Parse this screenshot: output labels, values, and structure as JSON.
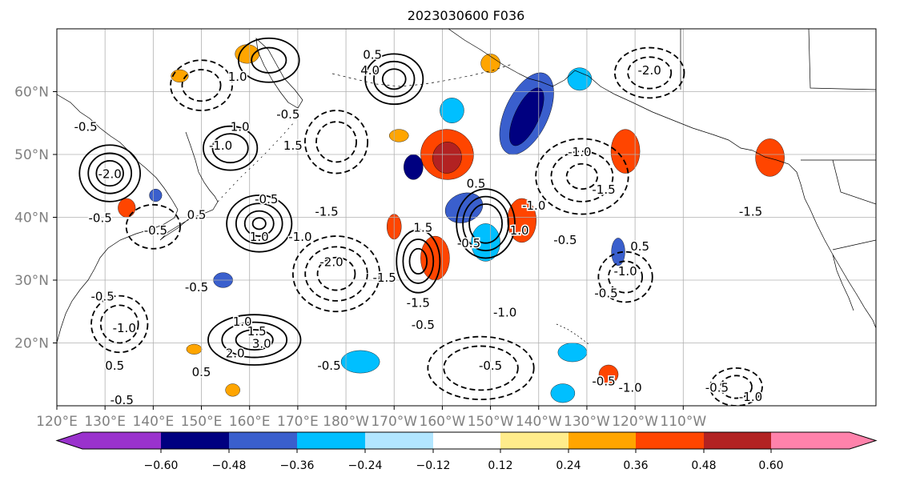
{
  "title": "2023030600 F036",
  "map": {
    "lon_range": [
      120,
      290
    ],
    "lat_range": [
      10,
      70
    ],
    "lon_ticks": [
      {
        "value": 120,
        "label": "120°E"
      },
      {
        "value": 130,
        "label": "130°E"
      },
      {
        "value": 140,
        "label": "140°E"
      },
      {
        "value": 150,
        "label": "150°E"
      },
      {
        "value": 160,
        "label": "160°E"
      },
      {
        "value": 170,
        "label": "170°E"
      },
      {
        "value": 180,
        "label": "180°W"
      },
      {
        "value": 190,
        "label": "170°W"
      },
      {
        "value": 200,
        "label": "160°W"
      },
      {
        "value": 210,
        "label": "150°W"
      },
      {
        "value": 220,
        "label": "140°W"
      },
      {
        "value": 230,
        "label": "130°W"
      },
      {
        "value": 240,
        "label": "120°W"
      },
      {
        "value": 250,
        "label": "110°W"
      }
    ],
    "lat_ticks": [
      {
        "value": 20,
        "label": "20°N"
      },
      {
        "value": 30,
        "label": "30°N"
      },
      {
        "value": 40,
        "label": "40°N"
      },
      {
        "value": 50,
        "label": "50°N"
      },
      {
        "value": 60,
        "label": "60°N"
      }
    ],
    "grid": true,
    "contour_labels": [
      {
        "text": "0.5",
        "lon": 185.5,
        "lat": 66.0
      },
      {
        "text": "1.0",
        "lon": 157.5,
        "lat": 62.5
      },
      {
        "text": "4.0",
        "lon": 185.0,
        "lat": 63.5
      },
      {
        "text": "-0.5",
        "lon": 126.0,
        "lat": 54.5
      },
      {
        "text": "1.0",
        "lon": 158.0,
        "lat": 54.5
      },
      {
        "text": "1.5",
        "lon": 169.0,
        "lat": 51.5
      },
      {
        "text": "-0.5",
        "lon": 168.0,
        "lat": 56.5
      },
      {
        "text": "-1.0",
        "lon": 154.0,
        "lat": 51.5
      },
      {
        "text": "-2.0",
        "lon": 131.0,
        "lat": 47.0
      },
      {
        "text": "0.5",
        "lon": 149.0,
        "lat": 40.5
      },
      {
        "text": "-0.5",
        "lon": 163.5,
        "lat": 43.0
      },
      {
        "text": "-1.5",
        "lon": 176.0,
        "lat": 41.0
      },
      {
        "text": "-1.0",
        "lon": 170.5,
        "lat": 37.0
      },
      {
        "text": "-2.0",
        "lon": 177.0,
        "lat": 33.0
      },
      {
        "text": "1.5",
        "lon": 196.0,
        "lat": 38.5
      },
      {
        "text": "-0.5",
        "lon": 205.5,
        "lat": 36.0
      },
      {
        "text": "-1.5",
        "lon": 195.0,
        "lat": 26.5
      },
      {
        "text": "-1.5",
        "lon": 188.0,
        "lat": 30.5
      },
      {
        "text": "-1.0",
        "lon": 213.0,
        "lat": 25.0
      },
      {
        "text": "1.0",
        "lon": 216.0,
        "lat": 38.0
      },
      {
        "text": "-1.0",
        "lon": 219.0,
        "lat": 42.0
      },
      {
        "text": "-1.5",
        "lon": 233.5,
        "lat": 44.5
      },
      {
        "text": "-1.0",
        "lon": 228.5,
        "lat": 50.5
      },
      {
        "text": "-0.5",
        "lon": 225.5,
        "lat": 36.5
      },
      {
        "text": "-0.5",
        "lon": 234.0,
        "lat": 28.0
      },
      {
        "text": "-1.0",
        "lon": 238.0,
        "lat": 31.5
      },
      {
        "text": "0.5",
        "lon": 241.0,
        "lat": 35.5
      },
      {
        "text": "-2.0",
        "lon": 243.0,
        "lat": 63.5
      },
      {
        "text": "-1.5",
        "lon": 264.0,
        "lat": 41.0
      },
      {
        "text": "-0.5",
        "lon": 196.0,
        "lat": 23.0
      },
      {
        "text": "-0.5",
        "lon": 210.0,
        "lat": 16.5
      },
      {
        "text": "-0.5",
        "lon": 233.5,
        "lat": 14.0
      },
      {
        "text": "-1.0",
        "lon": 239.0,
        "lat": 13.0
      },
      {
        "text": "-0.5",
        "lon": 257.0,
        "lat": 13.0
      },
      {
        "text": "-1.0",
        "lon": 264.0,
        "lat": 11.5
      },
      {
        "text": "-0.5",
        "lon": 176.5,
        "lat": 16.5
      },
      {
        "text": "1.0",
        "lon": 158.5,
        "lat": 23.5
      },
      {
        "text": "1.5",
        "lon": 161.5,
        "lat": 22.0
      },
      {
        "text": "3.0",
        "lon": 162.5,
        "lat": 20.0
      },
      {
        "text": "2.0",
        "lon": 157.0,
        "lat": 18.5
      },
      {
        "text": "0.5",
        "lon": 150.0,
        "lat": 15.5
      },
      {
        "text": "-1.0",
        "lon": 134.0,
        "lat": 22.5
      },
      {
        "text": "-0.5",
        "lon": 129.5,
        "lat": 27.5
      },
      {
        "text": "0.5",
        "lon": 132.0,
        "lat": 16.5
      },
      {
        "text": "-0.5",
        "lon": 133.5,
        "lat": 11.0
      },
      {
        "text": "1.0",
        "lon": 162.0,
        "lat": 37.0
      },
      {
        "text": "-0.5",
        "lon": 149.0,
        "lat": 29.0
      },
      {
        "text": "-0.5",
        "lon": 129.0,
        "lat": 40.0
      },
      {
        "text": "-0.5",
        "lon": 140.5,
        "lat": 38.0
      },
      {
        "text": "0.5",
        "lon": 207.0,
        "lat": 45.5
      }
    ],
    "solid_contours": [
      {
        "center": [
          131,
          47
        ],
        "radii": [
          4.5,
          3.2,
          2
        ],
        "rx_scale": 1.4
      },
      {
        "center": [
          162,
          39
        ],
        "radii": [
          4.5,
          3.2,
          2,
          0.9
        ],
        "rx_scale": 1.5
      },
      {
        "center": [
          156,
          51
        ],
        "radii": [
          3.5,
          2.3
        ],
        "rx_scale": 1.6
      },
      {
        "center": [
          161,
          20.5
        ],
        "radii": [
          4,
          2.8,
          1.6
        ],
        "rx_scale": 2.4
      },
      {
        "center": [
          209,
          39
        ],
        "radii": [
          5.5,
          4.3,
          3.1
        ],
        "rx_scale": 1.1
      },
      {
        "center": [
          195,
          33
        ],
        "radii": [
          5,
          3.5,
          2
        ],
        "rx_scale": 0.9
      },
      {
        "center": [
          164,
          65
        ],
        "radii": [
          3.5,
          2
        ],
        "rx_scale": 1.8
      },
      {
        "center": [
          190,
          62
        ],
        "radii": [
          4,
          2.8,
          1.6
        ],
        "rx_scale": 1.5
      }
    ],
    "dashed_contours": [
      {
        "center": [
          178,
          31
        ],
        "radii": [
          6,
          4.3,
          2.6
        ],
        "rx_scale": 1.5
      },
      {
        "center": [
          150,
          61
        ],
        "radii": [
          4,
          2.5
        ],
        "rx_scale": 1.6
      },
      {
        "center": [
          229,
          46.5
        ],
        "radii": [
          6,
          4,
          2
        ],
        "rx_scale": 1.6
      },
      {
        "center": [
          238,
          30.5
        ],
        "radii": [
          4,
          2.5
        ],
        "rx_scale": 1.4
      },
      {
        "center": [
          208,
          16
        ],
        "radii": [
          5,
          3.5
        ],
        "rx_scale": 2.2
      },
      {
        "center": [
          133,
          23
        ],
        "radii": [
          4.5,
          3
        ],
        "rx_scale": 1.3
      },
      {
        "center": [
          243,
          63
        ],
        "radii": [
          4,
          2.5
        ],
        "rx_scale": 1.8
      },
      {
        "center": [
          261,
          13
        ],
        "radii": [
          3,
          1.8
        ],
        "rx_scale": 1.8
      },
      {
        "center": [
          178,
          52
        ],
        "radii": [
          5,
          3.2
        ],
        "rx_scale": 1.3
      },
      {
        "center": [
          140,
          38.5
        ],
        "radii": [
          3.5
        ],
        "rx_scale": 1.6
      }
    ],
    "shaded_regions": [
      {
        "lon": 217.5,
        "lat": 56.5,
        "rlon": 4.5,
        "rlat": 7.0,
        "rot": 25,
        "value": -0.42
      },
      {
        "lon": 217.5,
        "lat": 56.0,
        "rlon": 2.5,
        "rlat": 5.0,
        "rot": 25,
        "value": -0.5
      },
      {
        "lon": 204.5,
        "lat": 41.5,
        "rlon": 4.0,
        "rlat": 2.3,
        "rot": -20,
        "value": -0.42
      },
      {
        "lon": 209.0,
        "lat": 36.0,
        "rlon": 3.0,
        "rlat": 3.0,
        "rot": 0,
        "value": -0.3
      },
      {
        "lon": 194.0,
        "lat": 48.0,
        "rlon": 2.0,
        "rlat": 2.0,
        "rot": 0,
        "value": -0.55
      },
      {
        "lon": 236.5,
        "lat": 34.5,
        "rlon": 1.4,
        "rlat": 2.2,
        "rot": 0,
        "value": -0.4
      },
      {
        "lon": 154.5,
        "lat": 30.0,
        "rlon": 2.0,
        "rlat": 1.2,
        "rot": 0,
        "value": -0.4
      },
      {
        "lon": 227.0,
        "lat": 18.5,
        "rlon": 3.0,
        "rlat": 1.5,
        "rot": 0,
        "value": -0.3
      },
      {
        "lon": 225.0,
        "lat": 12.0,
        "rlon": 2.5,
        "rlat": 1.5,
        "rot": 0,
        "value": -0.3
      },
      {
        "lon": 202.0,
        "lat": 57.0,
        "rlon": 2.5,
        "rlat": 2.0,
        "rot": 0,
        "value": -0.3
      },
      {
        "lon": 140.5,
        "lat": 43.5,
        "rlon": 1.3,
        "rlat": 1.0,
        "rot": 0,
        "value": -0.4
      },
      {
        "lon": 228.5,
        "lat": 62.0,
        "rlon": 2.5,
        "rlat": 1.8,
        "rot": 0,
        "value": -0.3
      },
      {
        "lon": 201.0,
        "lat": 50.0,
        "rlon": 5.5,
        "rlat": 4.0,
        "rot": 10,
        "value": 0.36
      },
      {
        "lon": 201.0,
        "lat": 49.5,
        "rlon": 3.0,
        "rlat": 2.5,
        "rot": 10,
        "value": 0.5
      },
      {
        "lon": 216.5,
        "lat": 39.5,
        "rlon": 3.0,
        "rlat": 3.5,
        "rot": 0,
        "value": 0.42
      },
      {
        "lon": 198.5,
        "lat": 33.5,
        "rlon": 3.0,
        "rlat": 3.5,
        "rot": 0,
        "value": 0.42
      },
      {
        "lon": 268.0,
        "lat": 49.5,
        "rlon": 3.0,
        "rlat": 3.0,
        "rot": 0,
        "value": 0.4
      },
      {
        "lon": 238.0,
        "lat": 50.5,
        "rlon": 3.0,
        "rlat": 3.5,
        "rot": 0,
        "value": 0.4
      },
      {
        "lon": 134.5,
        "lat": 41.5,
        "rlon": 1.8,
        "rlat": 1.5,
        "rot": 0,
        "value": 0.36
      },
      {
        "lon": 190.0,
        "lat": 38.5,
        "rlon": 1.5,
        "rlat": 2.0,
        "rot": 0,
        "value": 0.36
      },
      {
        "lon": 234.5,
        "lat": 15.0,
        "rlon": 2.0,
        "rlat": 1.5,
        "rot": 0,
        "value": 0.4
      },
      {
        "lon": 159.5,
        "lat": 66.0,
        "rlon": 2.5,
        "rlat": 1.5,
        "rot": 0,
        "value": 0.3
      },
      {
        "lon": 210.0,
        "lat": 64.5,
        "rlon": 2.0,
        "rlat": 1.5,
        "rot": 0,
        "value": 0.3
      },
      {
        "lon": 145.5,
        "lat": 62.5,
        "rlon": 1.8,
        "rlat": 1.0,
        "rot": 0,
        "value": 0.3
      },
      {
        "lon": 156.5,
        "lat": 12.5,
        "rlon": 1.5,
        "rlat": 1.0,
        "rot": 0,
        "value": 0.3
      },
      {
        "lon": 183.0,
        "lat": 17.0,
        "rlon": 4.0,
        "rlat": 1.8,
        "rot": 0,
        "value": -0.3
      },
      {
        "lon": 148.5,
        "lat": 19.0,
        "rlon": 1.6,
        "rlat": 0.8,
        "rot": 0,
        "value": 0.3
      },
      {
        "lon": 191.0,
        "lat": 53.0,
        "rlon": 2.0,
        "rlat": 1.0,
        "rot": 0,
        "value": 0.3
      }
    ]
  },
  "colorbar": {
    "boundaries": [
      -0.72,
      -0.6,
      -0.48,
      -0.36,
      -0.24,
      -0.12,
      0.12,
      0.24,
      0.36,
      0.48,
      0.6,
      0.72
    ],
    "colors": [
      "#9a32cd",
      "#000080",
      "#3a5fcd",
      "#00bfff",
      "#b2e6ff",
      "#ffffff",
      "#ffec8b",
      "#ffa500",
      "#ff4500",
      "#b22222",
      "#ff82ab"
    ],
    "under_color": "#9a32cd",
    "over_color": "#ff82ab",
    "tick_values": [
      -0.6,
      -0.48,
      -0.36,
      -0.24,
      -0.12,
      0.12,
      0.24,
      0.36,
      0.48,
      0.6
    ],
    "tick_labels": [
      "−0.60",
      "−0.48",
      "−0.36",
      "−0.24",
      "−0.12",
      "0.12",
      "0.24",
      "0.36",
      "0.48",
      "0.60"
    ]
  }
}
